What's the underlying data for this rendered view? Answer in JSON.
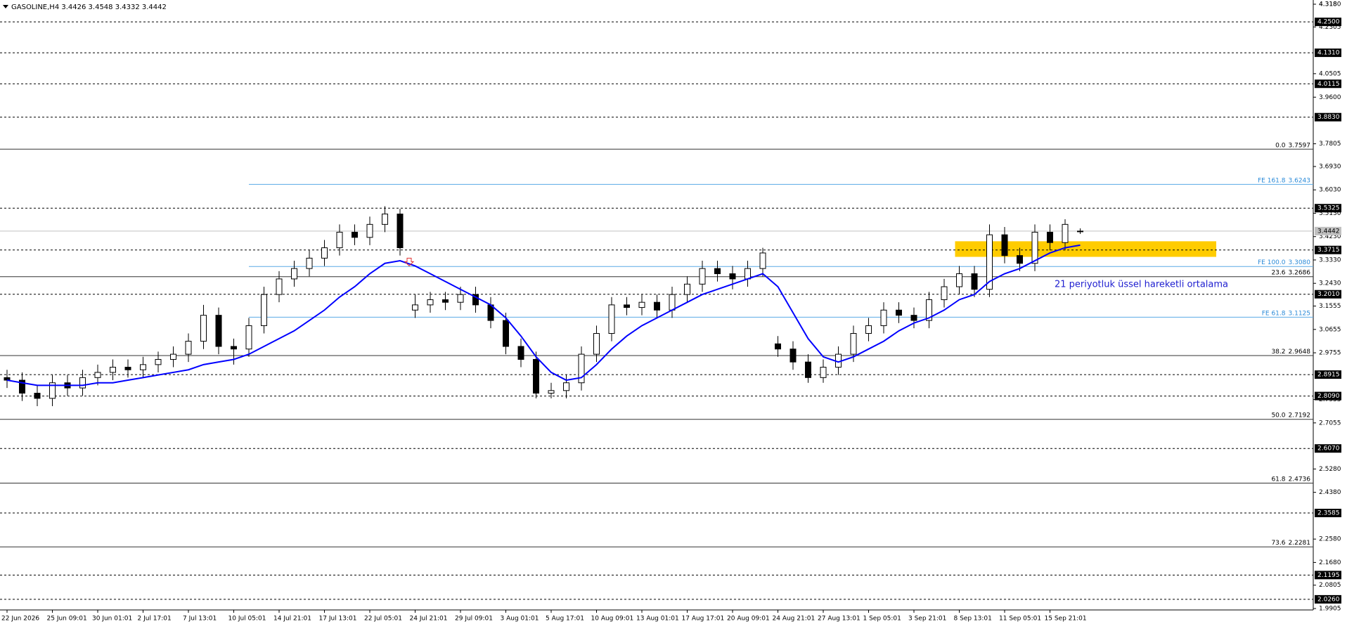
{
  "chart_data": {
    "type": "candlestick",
    "title": "GASOLINE,H4 3.4426 3.4548 3.4332 3.4442",
    "annotation": "21 periyotluk üssel hareketli ortalama",
    "xticks": [
      "22 Jun 2026",
      "25 Jun 09:01",
      "30 Jun 01:01",
      "2 Jul 17:01",
      "7 Jul 13:01",
      "10 Jul 05:01",
      "14 Jul 21:01",
      "17 Jul 13:01",
      "22 Jul 05:01",
      "24 Jul 21:01",
      "29 Jul 09:01",
      "3 Aug 01:01",
      "5 Aug 17:01",
      "10 Aug 09:01",
      "13 Aug 01:01",
      "17 Aug 17:01",
      "20 Aug 09:01",
      "24 Aug 21:01",
      "27 Aug 13:01",
      "1 Sep 05:01",
      "3 Sep 21:01",
      "8 Sep 13:01",
      "11 Sep 05:01",
      "15 Sep 21:01"
    ],
    "ylim": [
      1.9905,
      4.318
    ],
    "yticks": [
      {
        "value": 4.318,
        "label": "4.3180"
      },
      4.2305,
      4.0505,
      {
        "value": 3.96,
        "label": "3.9600"
      },
      4.318,
      3.7805,
      {
        "value": 3.693,
        "label": "3.6930"
      },
      {
        "value": 3.603,
        "label": "3.6030"
      },
      {
        "value": 3.513,
        "label": "3.5130"
      },
      {
        "value": 3.423,
        "label": "3.4230"
      },
      {
        "value": 3.333,
        "label": "3.3330"
      },
      {
        "value": 3.243,
        "label": "3.2430"
      },
      3.1555,
      3.0655,
      2.9755,
      2.7955,
      2.7055,
      {
        "value": 2.528,
        "label": "2.5280"
      },
      {
        "value": 2.438,
        "label": "2.4380"
      },
      {
        "value": 2.258,
        "label": "2.2580"
      },
      {
        "value": 2.168,
        "label": "2.1680"
      },
      2.0805,
      1.9905
    ],
    "levels": [
      {
        "value": 4.25,
        "label": "4.2500"
      },
      {
        "value": 4.131,
        "label": "4.1310"
      },
      4.0115,
      {
        "value": 3.883,
        "label": "3.8830"
      },
      3.5325,
      3.3715,
      {
        "value": 3.201,
        "label": "3.2010"
      },
      2.8915,
      {
        "value": 2.809,
        "label": "2.8090"
      },
      {
        "value": 2.607,
        "label": "2.6070"
      },
      2.3585,
      2.1195,
      {
        "value": 2.026,
        "label": "2.0260"
      }
    ],
    "current_price": 3.4442,
    "fib_retracement": [
      {
        "level": "0.0",
        "price": 3.7597
      },
      {
        "level": "23.6",
        "price": 3.2686
      },
      {
        "level": "38.2",
        "price": 2.9648
      },
      {
        "level": "50.0",
        "price": 2.7192
      },
      {
        "level": "61.8",
        "price": 2.4736
      },
      {
        "level": "73.6",
        "price": 2.2281
      }
    ],
    "fib_expansion": [
      {
        "level": "FE 161.8",
        "price": 3.6243
      },
      {
        "level": "FE 100.0",
        "price": {
          "value": 3.308,
          "label": "3.3080"
        }
      },
      {
        "level": "FE 61.8",
        "price": 3.1125
      }
    ],
    "zone": {
      "top": 3.405,
      "bottom": 3.345,
      "color": "#ffcc00"
    },
    "up_color": "#ffffff",
    "down_color": "#000000",
    "open": [
      2.88,
      2.87,
      2.82,
      2.8,
      2.86,
      2.84,
      2.88,
      2.9,
      2.92,
      2.91,
      2.93,
      2.95,
      2.97,
      3.02,
      3.12,
      3.0,
      2.99,
      3.08,
      3.2,
      3.26,
      3.3,
      3.34,
      3.38,
      3.44,
      3.42,
      3.47,
      3.51,
      3.14,
      3.16,
      3.18,
      3.17,
      3.2,
      3.16,
      3.1,
      3.0,
      2.95,
      2.82,
      2.83,
      2.86,
      2.97,
      3.05,
      3.16,
      3.15,
      3.17,
      3.14,
      3.2,
      3.24,
      3.3,
      3.28,
      3.26,
      3.3,
      3.01,
      2.99,
      2.94,
      2.88,
      2.92,
      2.97,
      3.05,
      3.08,
      3.14,
      3.12,
      3.1,
      3.18,
      3.23,
      3.28,
      3.22,
      3.43,
      3.35,
      3.32,
      3.44,
      3.4,
      3.4426
    ],
    "high": [
      2.91,
      2.9,
      2.85,
      2.89,
      2.89,
      2.91,
      2.93,
      2.95,
      2.95,
      2.96,
      2.98,
      3.0,
      3.05,
      3.16,
      3.15,
      3.03,
      3.11,
      3.23,
      3.29,
      3.33,
      3.37,
      3.41,
      3.47,
      3.47,
      3.5,
      3.54,
      3.53,
      3.2,
      3.21,
      3.21,
      3.23,
      3.23,
      3.19,
      3.13,
      3.03,
      2.98,
      2.86,
      2.89,
      3.0,
      3.08,
      3.19,
      3.19,
      3.2,
      3.2,
      3.23,
      3.27,
      3.33,
      3.33,
      3.31,
      3.33,
      3.38,
      3.04,
      3.02,
      2.97,
      2.95,
      3.0,
      3.08,
      3.11,
      3.17,
      3.17,
      3.15,
      3.21,
      3.26,
      3.31,
      3.31,
      3.47,
      3.46,
      3.38,
      3.47,
      3.47,
      3.49,
      3.4548
    ],
    "low": [
      2.84,
      2.79,
      2.77,
      2.77,
      2.81,
      2.81,
      2.85,
      2.87,
      2.88,
      2.88,
      2.9,
      2.92,
      2.94,
      2.99,
      2.97,
      2.93,
      2.96,
      3.05,
      3.17,
      3.23,
      3.27,
      3.31,
      3.35,
      3.39,
      3.39,
      3.44,
      3.35,
      3.11,
      3.13,
      3.14,
      3.14,
      3.13,
      3.07,
      2.97,
      2.92,
      2.8,
      2.8,
      2.8,
      2.83,
      2.94,
      3.02,
      3.12,
      3.12,
      3.11,
      3.11,
      3.17,
      3.21,
      3.25,
      3.22,
      3.23,
      3.27,
      2.96,
      2.91,
      2.86,
      2.86,
      2.89,
      2.94,
      3.02,
      3.05,
      3.09,
      3.07,
      3.07,
      3.15,
      3.2,
      3.19,
      3.19,
      3.32,
      3.29,
      3.29,
      3.37,
      3.37,
      3.4332
    ],
    "close": [
      2.87,
      2.82,
      2.8,
      2.86,
      2.84,
      2.88,
      2.9,
      2.92,
      2.91,
      2.93,
      2.95,
      2.97,
      3.02,
      3.12,
      3.0,
      2.99,
      3.08,
      3.2,
      3.26,
      3.3,
      3.34,
      3.38,
      3.44,
      3.42,
      3.47,
      3.51,
      3.38,
      3.16,
      3.18,
      3.17,
      3.2,
      3.16,
      3.1,
      3.0,
      2.95,
      2.82,
      2.83,
      2.86,
      2.97,
      3.05,
      3.16,
      3.15,
      3.17,
      3.14,
      3.2,
      3.24,
      3.3,
      3.28,
      3.26,
      3.3,
      3.36,
      2.99,
      2.94,
      2.88,
      2.92,
      2.97,
      3.05,
      3.08,
      3.14,
      3.12,
      3.1,
      3.18,
      3.23,
      3.28,
      3.22,
      3.43,
      3.35,
      3.32,
      3.44,
      3.4,
      3.47,
      3.4442
    ],
    "ema": {
      "color": "#0000ff",
      "values": [
        2.87,
        2.86,
        2.85,
        2.85,
        2.85,
        2.85,
        2.86,
        2.86,
        2.87,
        2.88,
        2.89,
        2.9,
        2.91,
        2.93,
        2.94,
        2.95,
        2.97,
        3.0,
        3.03,
        3.06,
        3.1,
        3.14,
        3.19,
        3.23,
        3.28,
        3.32,
        3.33,
        3.31,
        3.28,
        3.25,
        3.22,
        3.19,
        3.16,
        3.11,
        3.04,
        2.96,
        2.9,
        2.87,
        2.88,
        2.93,
        2.99,
        3.04,
        3.08,
        3.11,
        3.14,
        3.17,
        3.2,
        3.22,
        3.24,
        3.26,
        3.28,
        3.23,
        3.13,
        3.03,
        2.96,
        2.94,
        2.96,
        2.99,
        3.02,
        3.06,
        3.09,
        3.11,
        3.14,
        3.18,
        3.2,
        3.25,
        3.28,
        3.3,
        3.33,
        3.36,
        3.38,
        3.39
      ]
    }
  }
}
